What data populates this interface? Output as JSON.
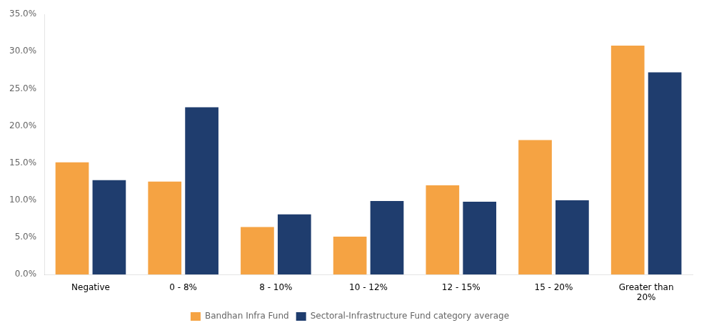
{
  "chart_data": {
    "type": "bar",
    "categories": [
      "Negative",
      "0 - 8%",
      "8 - 10%",
      "10 - 12%",
      "12 - 15%",
      "15 - 20%",
      "Greater than\n20%"
    ],
    "series": [
      {
        "name": "Bandhan Infra Fund",
        "color": "#F5A343",
        "values": [
          15.1,
          12.5,
          6.4,
          5.1,
          12.0,
          18.1,
          30.8
        ]
      },
      {
        "name": "Sectoral-Infrastructure Fund category average",
        "color": "#1F3D6E",
        "values": [
          12.7,
          22.5,
          8.1,
          9.9,
          9.8,
          10.0,
          27.2
        ]
      }
    ],
    "ylim": [
      0,
      35.0
    ],
    "yticks": [
      {
        "value": 0.0,
        "label": "0.0%"
      },
      {
        "value": 5.0,
        "label": "5.0%"
      },
      {
        "value": 10.0,
        "label": "10.0%"
      },
      {
        "value": 15.0,
        "label": "15.0%"
      },
      {
        "value": 20.0,
        "label": "20.0%"
      },
      {
        "value": 25.0,
        "label": "25.0%"
      },
      {
        "value": 30.0,
        "label": "30.0%"
      },
      {
        "value": 35.0,
        "label": "35.0%"
      }
    ],
    "grid": false,
    "legend": "bottom"
  }
}
